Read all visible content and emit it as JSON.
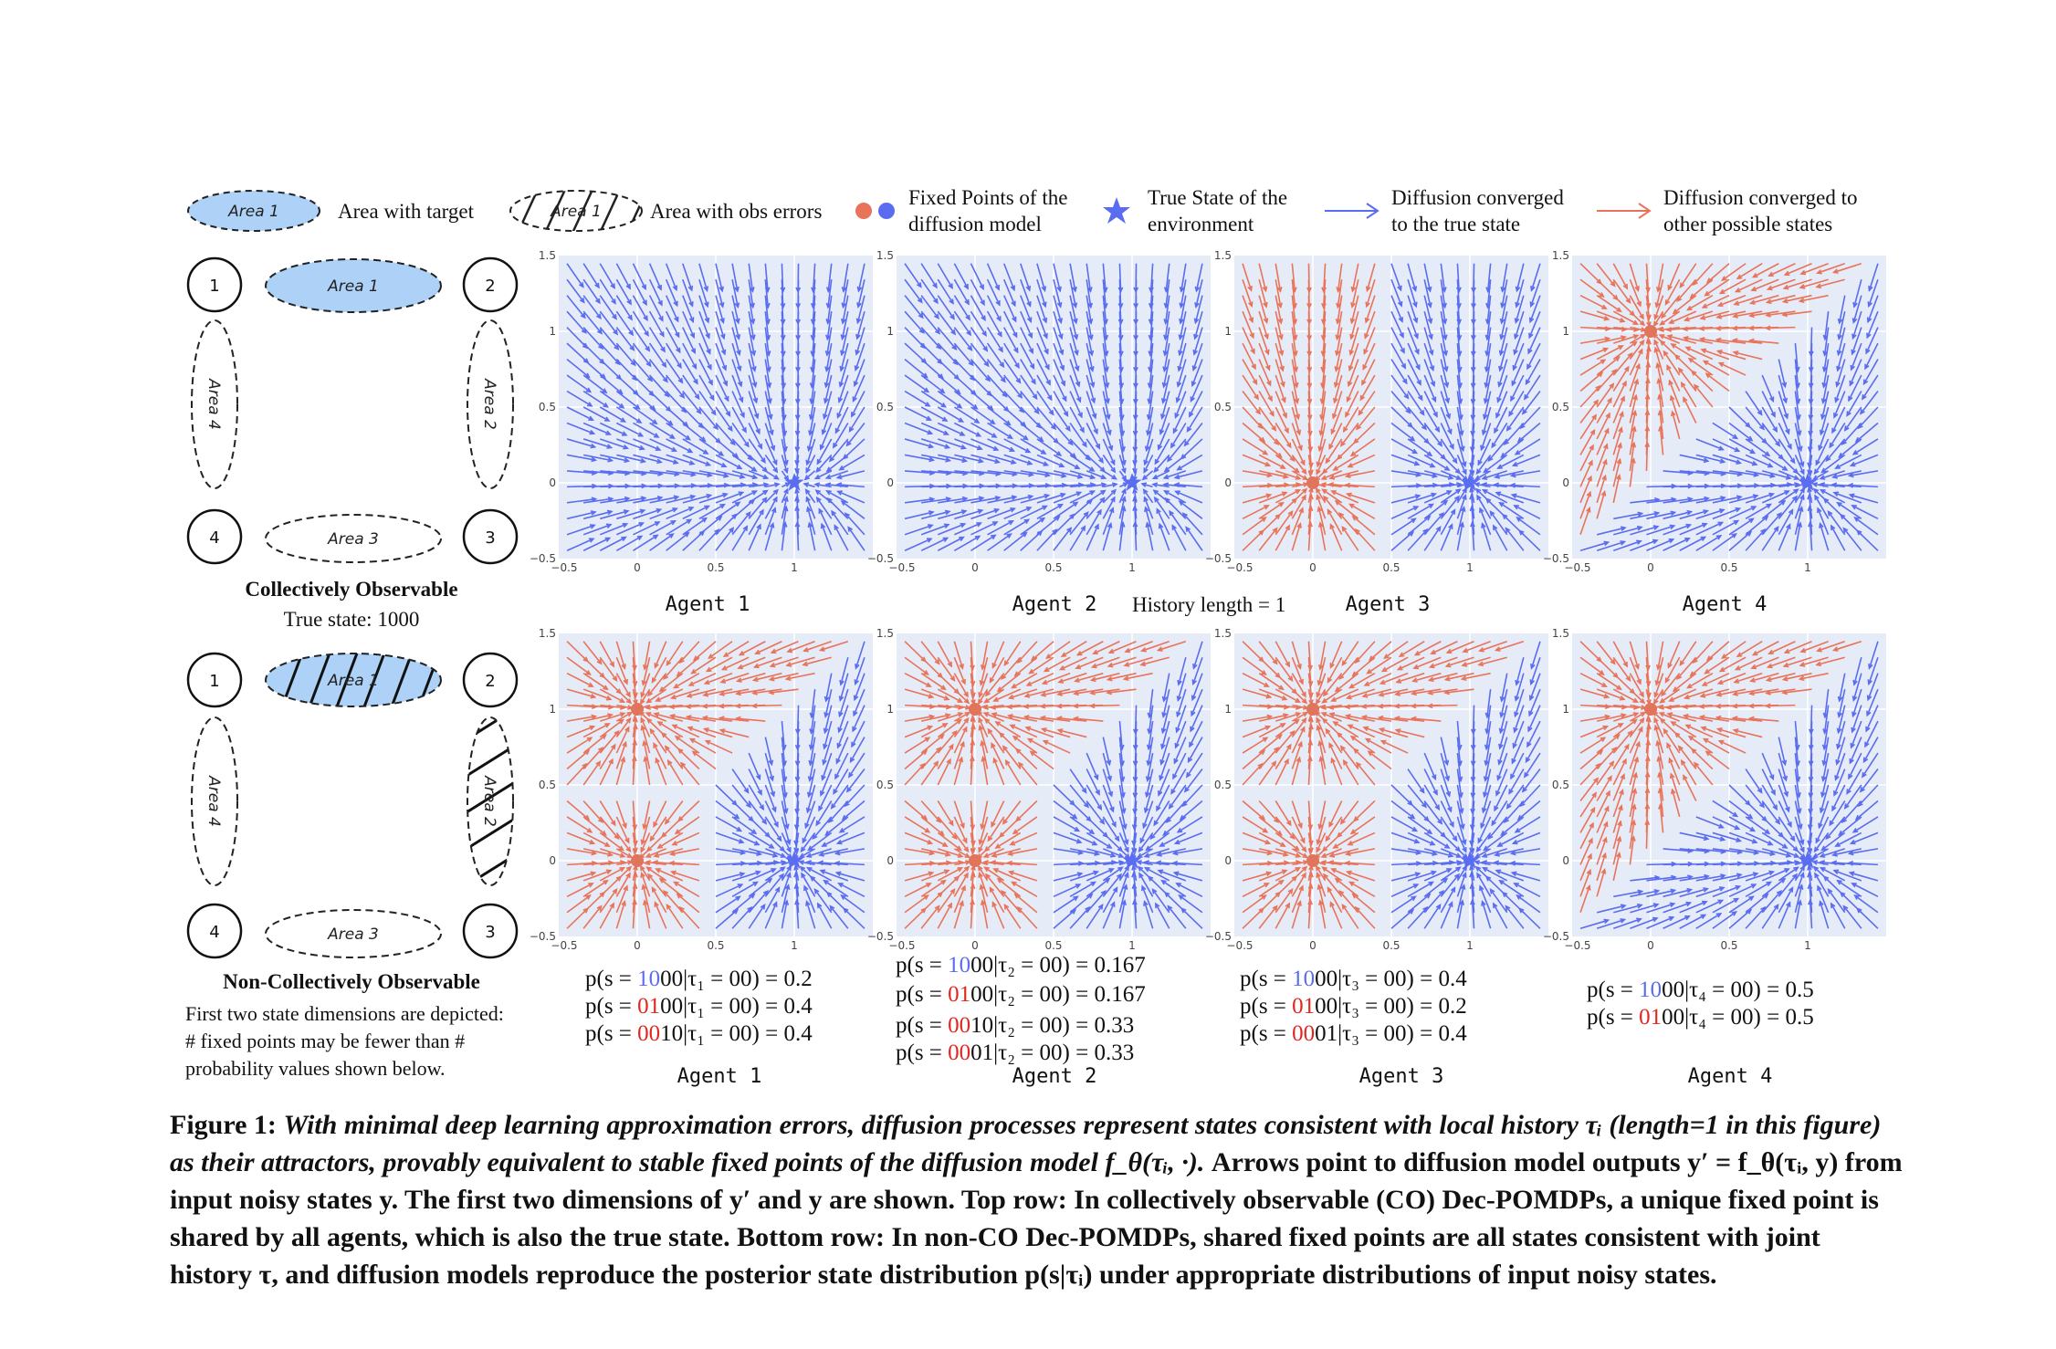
{
  "legend": {
    "area_with_target": "Area with target",
    "area_with_obs_errors": "Area with obs errors",
    "fixed_points_line1": "Fixed Points of the",
    "fixed_points_line2": "diffusion model",
    "true_state_line1": "True State of the",
    "true_state_line2": "environment",
    "conv_true_line1": "Diffusion converged",
    "conv_true_line2": "to the true state",
    "conv_other_line1": "Diffusion converged to",
    "conv_other_line2": "other possible states",
    "area1_tag": "Area 1"
  },
  "colors": {
    "blue": "#5a6cf0",
    "red": "#e8735a",
    "fill": "#aed2f7",
    "plot_bg": "#e6ecf7",
    "prob_red": "#e0261f"
  },
  "diagram": {
    "nodes": [
      "1",
      "2",
      "3",
      "4"
    ],
    "areas": [
      "Area 1",
      "Area 2",
      "Area 3",
      "Area 4"
    ],
    "top_title": "Collectively Observable",
    "top_subtitle": "True state: 1000",
    "bottom_title": "Non-Collectively Observable",
    "bottom_note_1": "First two state dimensions are depicted:",
    "bottom_note_2": "# fixed points may be fewer than #",
    "bottom_note_3": "probability values shown below."
  },
  "axis_ticks": {
    "x": [
      "−0.5",
      "0",
      "0.5",
      "1"
    ],
    "y": [
      "1.5",
      "1",
      "0.5",
      "0",
      "−0.5"
    ]
  },
  "top_row": {
    "labels": [
      "Agent 1",
      "Agent 2",
      "Agent 3",
      "Agent 4"
    ],
    "history": "History length = 1"
  },
  "bottom_row": {
    "labels": [
      "Agent 1",
      "Agent 2",
      "Agent 3",
      "Agent 4"
    ],
    "probs": [
      [
        {
          "pre": "p(s = ",
          "hl": "10",
          "post": "00|τ₁ = 00) = 0.2",
          "c": "blue"
        },
        {
          "pre": "p(s = ",
          "hl": "01",
          "post": "00|τ₁ = 00) = 0.4",
          "c": "red"
        },
        {
          "pre": "p(s = ",
          "hl": "00",
          "post": "10|τ₁ = 00) = 0.4",
          "c": "red"
        }
      ],
      [
        {
          "pre": "p(s = ",
          "hl": "10",
          "post": "00|τ₂ = 00) = 0.167",
          "c": "blue"
        },
        {
          "pre": "p(s = ",
          "hl": "01",
          "post": "00|τ₂ = 00) = 0.167",
          "c": "red"
        },
        {
          "pre": "p(s = ",
          "hl": "00",
          "post": "10|τ₂ = 00) = 0.33",
          "c": "red"
        },
        {
          "pre": "p(s = ",
          "hl": "00",
          "post": "01|τ₂ = 00) = 0.33",
          "c": "red"
        }
      ],
      [
        {
          "pre": "p(s = ",
          "hl": "10",
          "post": "00|τ₃ = 00) = 0.4",
          "c": "blue"
        },
        {
          "pre": "p(s = ",
          "hl": "01",
          "post": "00|τ₃ = 00) = 0.2",
          "c": "red"
        },
        {
          "pre": "p(s = ",
          "hl": "00",
          "post": "01|τ₃ = 00) = 0.4",
          "c": "red"
        }
      ],
      [
        {
          "pre": "p(s = ",
          "hl": "10",
          "post": "00|τ₄ = 00) = 0.5",
          "c": "blue"
        },
        {
          "pre": "p(s = ",
          "hl": "01",
          "post": "00|τ₄ = 00) = 0.5",
          "c": "red"
        }
      ]
    ]
  },
  "caption": {
    "label": "Figure 1:",
    "italic": "With minimal deep learning approximation errors, diffusion processes represent states consistent with local history τᵢ (length=1 in this figure) as their attractors, provably equivalent to stable fixed points of the diffusion model f_θ(τᵢ, ·).",
    "rest": "Arrows point to diffusion model outputs y′ = f_θ(τᵢ, y) from input noisy states y. The first two dimensions of y′ and y are shown. Top row: In collectively observable (CO) Dec-POMDPs, a unique fixed point is shared by all agents, which is also the true state. Bottom row: In non-CO Dec-POMDPs, shared fixed points are all states consistent with joint history τ, and diffusion models reproduce the posterior state distribution p(s|τᵢ) under appropriate distributions of input noisy states."
  },
  "chart_data": [
    {
      "type": "quiver",
      "panel": "top-agent-1",
      "xlim": [
        -0.5,
        1.5
      ],
      "ylim": [
        -0.5,
        1.5
      ],
      "true_state": [
        1,
        0
      ],
      "fixed_points": []
    },
    {
      "type": "quiver",
      "panel": "top-agent-2",
      "xlim": [
        -0.5,
        1.5
      ],
      "ylim": [
        -0.5,
        1.5
      ],
      "true_state": [
        1,
        0
      ],
      "fixed_points": []
    },
    {
      "type": "quiver",
      "panel": "top-agent-3",
      "xlim": [
        -0.5,
        1.5
      ],
      "ylim": [
        -0.5,
        1.5
      ],
      "true_state": [
        1,
        0
      ],
      "fixed_points": [
        [
          0,
          0
        ]
      ]
    },
    {
      "type": "quiver",
      "panel": "top-agent-4",
      "xlim": [
        -0.5,
        1.5
      ],
      "ylim": [
        -0.5,
        1.5
      ],
      "true_state": [
        1,
        0
      ],
      "fixed_points": [
        [
          0,
          1
        ]
      ]
    },
    {
      "type": "quiver",
      "panel": "bottom-agent-1",
      "xlim": [
        -0.5,
        1.5
      ],
      "ylim": [
        -0.5,
        1.5
      ],
      "true_state": [
        1,
        0
      ],
      "fixed_points": [
        [
          0,
          1
        ],
        [
          0,
          0
        ]
      ]
    },
    {
      "type": "quiver",
      "panel": "bottom-agent-2",
      "xlim": [
        -0.5,
        1.5
      ],
      "ylim": [
        -0.5,
        1.5
      ],
      "true_state": [
        1,
        0
      ],
      "fixed_points": [
        [
          0,
          1
        ],
        [
          0,
          0
        ]
      ]
    },
    {
      "type": "quiver",
      "panel": "bottom-agent-3",
      "xlim": [
        -0.5,
        1.5
      ],
      "ylim": [
        -0.5,
        1.5
      ],
      "true_state": [
        1,
        0
      ],
      "fixed_points": [
        [
          0,
          1
        ],
        [
          0,
          0
        ]
      ]
    },
    {
      "type": "quiver",
      "panel": "bottom-agent-4",
      "xlim": [
        -0.5,
        1.5
      ],
      "ylim": [
        -0.5,
        1.5
      ],
      "true_state": [
        1,
        0
      ],
      "fixed_points": [
        [
          0,
          1
        ]
      ]
    }
  ]
}
